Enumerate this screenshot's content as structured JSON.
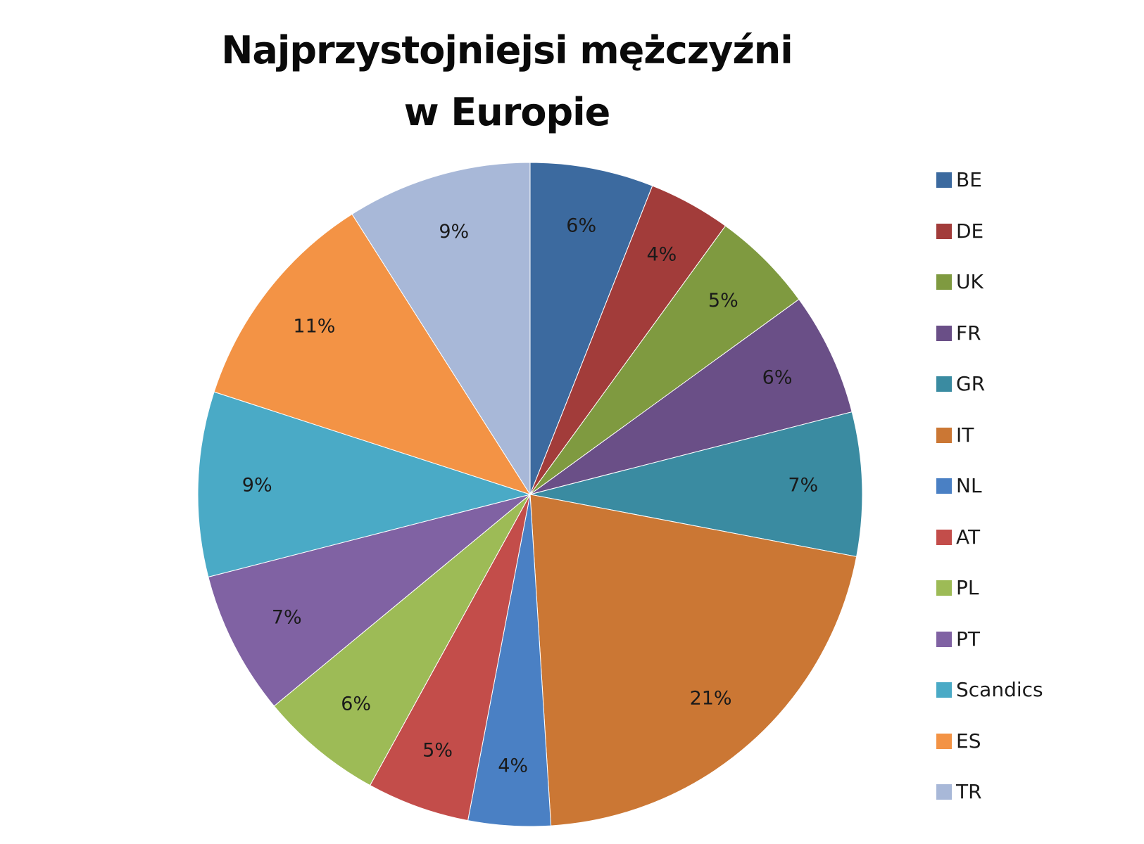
{
  "chart_data": {
    "type": "pie",
    "title": "Najprzystojniejsi mężczyźni w Europie",
    "title_lines": [
      "Najprzystojniejsi mężczyźni",
      "w Europie"
    ],
    "legend_position": "right",
    "slices": [
      {
        "label": "BE",
        "value": 6,
        "text": "6%",
        "color": "#3c6a9f"
      },
      {
        "label": "DE",
        "value": 4,
        "text": "4%",
        "color": "#a23c3a"
      },
      {
        "label": "UK",
        "value": 5,
        "text": "5%",
        "color": "#7f9a40"
      },
      {
        "label": "FR",
        "value": 6,
        "text": "6%",
        "color": "#6a4f87"
      },
      {
        "label": "GR",
        "value": 7,
        "text": "7%",
        "color": "#3a8ba1"
      },
      {
        "label": "IT",
        "value": 21,
        "text": "21%",
        "color": "#cb7734"
      },
      {
        "label": "NL",
        "value": 4,
        "text": "4%",
        "color": "#4a80c4"
      },
      {
        "label": "AT",
        "value": 5,
        "text": "5%",
        "color": "#c34d4a"
      },
      {
        "label": "PL",
        "value": 6,
        "text": "6%",
        "color": "#9dbb56"
      },
      {
        "label": "PT",
        "value": 7,
        "text": "7%",
        "color": "#8062a3"
      },
      {
        "label": "Scandics",
        "value": 9,
        "text": "9%",
        "color": "#4aaac6"
      },
      {
        "label": "ES",
        "value": 11,
        "text": "11%",
        "color": "#f39345"
      },
      {
        "label": "TR",
        "value": 9,
        "text": "9%",
        "color": "#a8b8d8"
      }
    ]
  }
}
